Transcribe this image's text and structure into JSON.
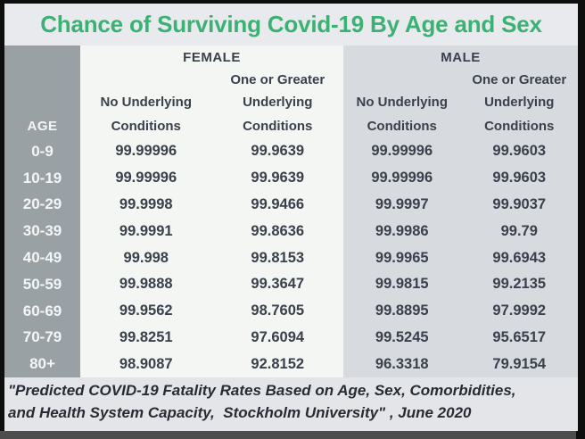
{
  "title": "Chance of Surviving Covid-19 By Age and Sex",
  "colors": {
    "title_green": "#3bb273",
    "age_column_bg": "#99a1a5",
    "female_bg": "#f3f6f3",
    "male_bg": "#d7dade",
    "text_dark": "#3a414c",
    "frame_border": "#0e0e0e"
  },
  "table": {
    "age_header": "AGE",
    "sections": [
      {
        "label": "FEMALE",
        "columns": [
          {
            "lines": [
              "No Underlying",
              "Conditions"
            ]
          },
          {
            "lines": [
              "One or Greater",
              "Underlying",
              "Conditions"
            ]
          }
        ]
      },
      {
        "label": "MALE",
        "columns": [
          {
            "lines": [
              "No Underlying",
              "Conditions"
            ]
          },
          {
            "lines": [
              "One or Greater",
              "Underlying",
              "Conditions"
            ]
          }
        ]
      }
    ],
    "rows": [
      {
        "age": "0-9",
        "female": [
          "99.99996",
          "99.9639"
        ],
        "male": [
          "99.99996",
          "99.9603"
        ]
      },
      {
        "age": "10-19",
        "female": [
          "99.99996",
          "99.9639"
        ],
        "male": [
          "99.99996",
          "99.9603"
        ]
      },
      {
        "age": "20-29",
        "female": [
          "99.9998",
          "99.9466"
        ],
        "male": [
          "99.9997",
          "99.9037"
        ]
      },
      {
        "age": "30-39",
        "female": [
          "99.9991",
          "99.8636"
        ],
        "male": [
          "99.9986",
          "99.79"
        ]
      },
      {
        "age": "40-49",
        "female": [
          "99.998",
          "99.8153"
        ],
        "male": [
          "99.9965",
          "99.6943"
        ]
      },
      {
        "age": "50-59",
        "female": [
          "99.9888",
          "99.3647"
        ],
        "male": [
          "99.9815",
          "99.2135"
        ]
      },
      {
        "age": "60-69",
        "female": [
          "99.9562",
          "98.7605"
        ],
        "male": [
          "99.8895",
          "97.9992"
        ]
      },
      {
        "age": "70-79",
        "female": [
          "99.8251",
          "97.6094"
        ],
        "male": [
          "99.5245",
          "95.6517"
        ]
      },
      {
        "age": "80+",
        "female": [
          "98.9087",
          "92.8152"
        ],
        "male": [
          "96.3318",
          "79.9154"
        ]
      }
    ]
  },
  "footer": {
    "line1": "\"Predicted COVID-19 Fatality Rates Based on Age, Sex, Comorbidities,",
    "line2": "and Health System Capacity,  Stockholm University\" , June 2020"
  },
  "chart_data": {
    "type": "table",
    "title": "Chance of Surviving Covid-19 By Age and Sex",
    "columns": [
      "AGE",
      "Female - No Underlying Conditions",
      "Female - One or Greater Underlying Conditions",
      "Male - No Underlying Conditions",
      "Male - One or Greater Underlying Conditions"
    ],
    "rows": [
      [
        "0-9",
        99.99996,
        99.9639,
        99.99996,
        99.9603
      ],
      [
        "10-19",
        99.99996,
        99.9639,
        99.99996,
        99.9603
      ],
      [
        "20-29",
        99.9998,
        99.9466,
        99.9997,
        99.9037
      ],
      [
        "30-39",
        99.9991,
        99.8636,
        99.9986,
        99.79
      ],
      [
        "40-49",
        99.998,
        99.8153,
        99.9965,
        99.6943
      ],
      [
        "50-59",
        99.9888,
        99.3647,
        99.9815,
        99.2135
      ],
      [
        "60-69",
        99.9562,
        98.7605,
        99.8895,
        97.9992
      ],
      [
        "70-79",
        99.8251,
        97.6094,
        99.5245,
        95.6517
      ],
      [
        "80+",
        98.9087,
        92.8152,
        96.3318,
        79.9154
      ]
    ],
    "units": "percent chance of survival",
    "source": "\"Predicted COVID-19 Fatality Rates Based on Age, Sex, Comorbidities, and Health System Capacity,  Stockholm University\" , June 2020"
  }
}
